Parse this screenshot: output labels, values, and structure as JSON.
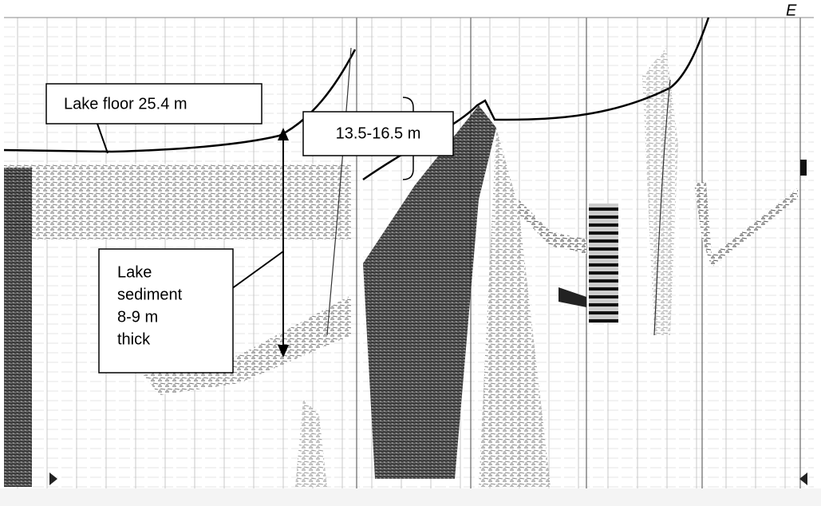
{
  "header": {
    "corner_mark": "E"
  },
  "annotations": [
    {
      "text": "Lake floor 25.4 m"
    },
    {
      "text": "13.5-16.5 m"
    },
    {
      "lines": [
        "Lake",
        "sediment",
        "8-9 m",
        "thick"
      ]
    }
  ]
}
